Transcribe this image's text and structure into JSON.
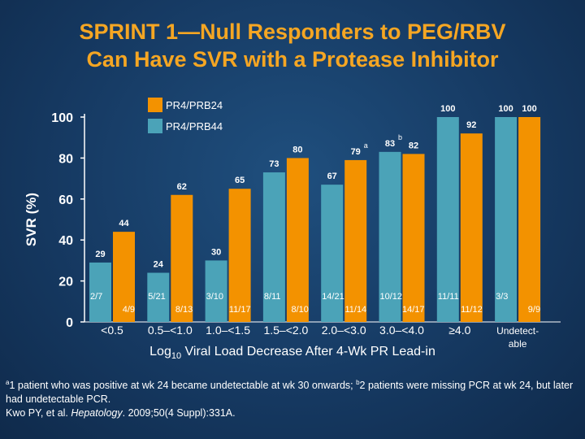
{
  "title": {
    "line1": "SPRINT 1—Null Responders to PEG/RBV",
    "line2": "Can Have SVR with a Protease Inhibitor"
  },
  "colors": {
    "series1": "#f39200",
    "series2": "#4ba3b8",
    "title": "#f5a623",
    "background": "#163a63"
  },
  "chart_data": {
    "type": "bar",
    "title": "",
    "ylabel": "SVR (%)",
    "xlabel_main": "Log",
    "xlabel_sub": "10",
    "xlabel_rest": " Viral Load Decrease After 4-Wk PR Lead-in",
    "ylim": [
      0,
      100
    ],
    "yticks": [
      0,
      20,
      40,
      60,
      80,
      100
    ],
    "grid": false,
    "legend_position": "top-left",
    "categories": [
      "<0.5",
      "0.5–<1.0",
      "1.0–<1.5",
      "1.5–<2.0",
      "2.0–<3.0",
      "3.0–<4.0",
      "≥4.0",
      "Undetect-able"
    ],
    "category_lines": [
      [
        "<0.5"
      ],
      [
        "0.5–<1.0"
      ],
      [
        "1.0–<1.5"
      ],
      [
        "1.5–<2.0"
      ],
      [
        "2.0–<3.0"
      ],
      [
        "3.0–<4.0"
      ],
      [
        "≥4.0"
      ],
      [
        "Undetect-",
        "able"
      ]
    ],
    "series": [
      {
        "name": "PR4/PRB44",
        "values": [
          29,
          24,
          30,
          73,
          67,
          83,
          100,
          100
        ],
        "value_labels": [
          "29",
          "24",
          "30",
          "73",
          "67",
          "83",
          "100",
          "100"
        ],
        "fraction_labels": [
          "2/7",
          "5/21",
          "3/10",
          "8/11",
          "14/21",
          "10/12",
          "11/11",
          "3/3"
        ],
        "superscripts": [
          "",
          "",
          "",
          "",
          "",
          "b",
          "",
          ""
        ]
      },
      {
        "name": "PR4/PRB24",
        "values": [
          44,
          62,
          65,
          80,
          79,
          82,
          92,
          100
        ],
        "value_labels": [
          "44",
          "62",
          "65",
          "80",
          "79",
          "82",
          "92",
          "100"
        ],
        "fraction_labels": [
          "4/9",
          "8/13",
          "11/17",
          "8/10",
          "11/14",
          "14/17",
          "11/12",
          "9/9"
        ],
        "superscripts": [
          "",
          "",
          "",
          "",
          "a",
          "",
          "",
          ""
        ]
      }
    ],
    "legend_order": [
      "PR4/PRB24",
      "PR4/PRB44"
    ]
  },
  "footnote": {
    "a_mark": "a",
    "a_text": "1 patient who was positive at wk 24 became undetectable at wk 30 onwards; ",
    "b_mark": "b",
    "b_text": "2 patients were missing PCR at wk 24, but later had undetectable PCR.",
    "ref_authors": "Kwo PY, et al. ",
    "ref_journal": "Hepatology",
    "ref_rest": ". 2009;50(4 Suppl):331A."
  }
}
